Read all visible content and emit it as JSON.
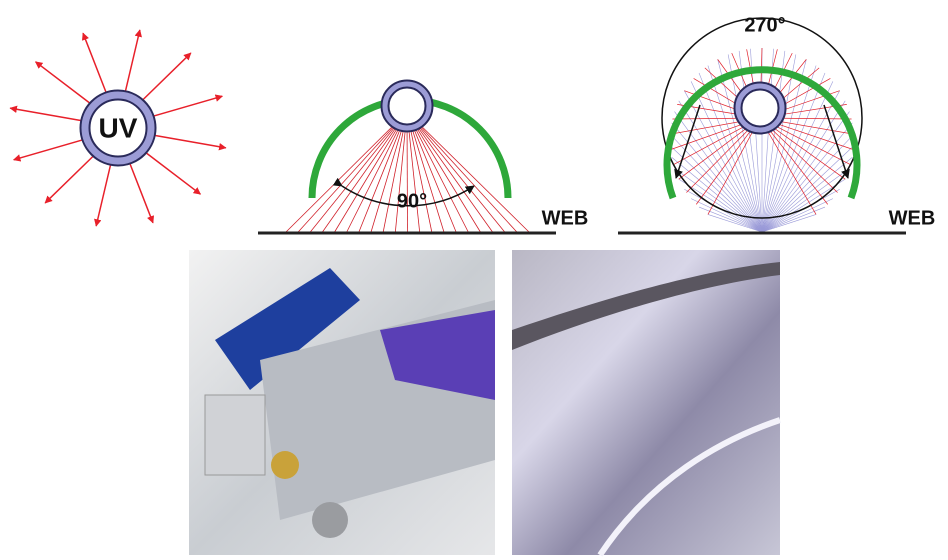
{
  "diagrams": [
    {
      "label": "UV"
    },
    {
      "angle": "90°",
      "web": "WEB"
    },
    {
      "angle": "270°",
      "web": "WEB"
    }
  ]
}
